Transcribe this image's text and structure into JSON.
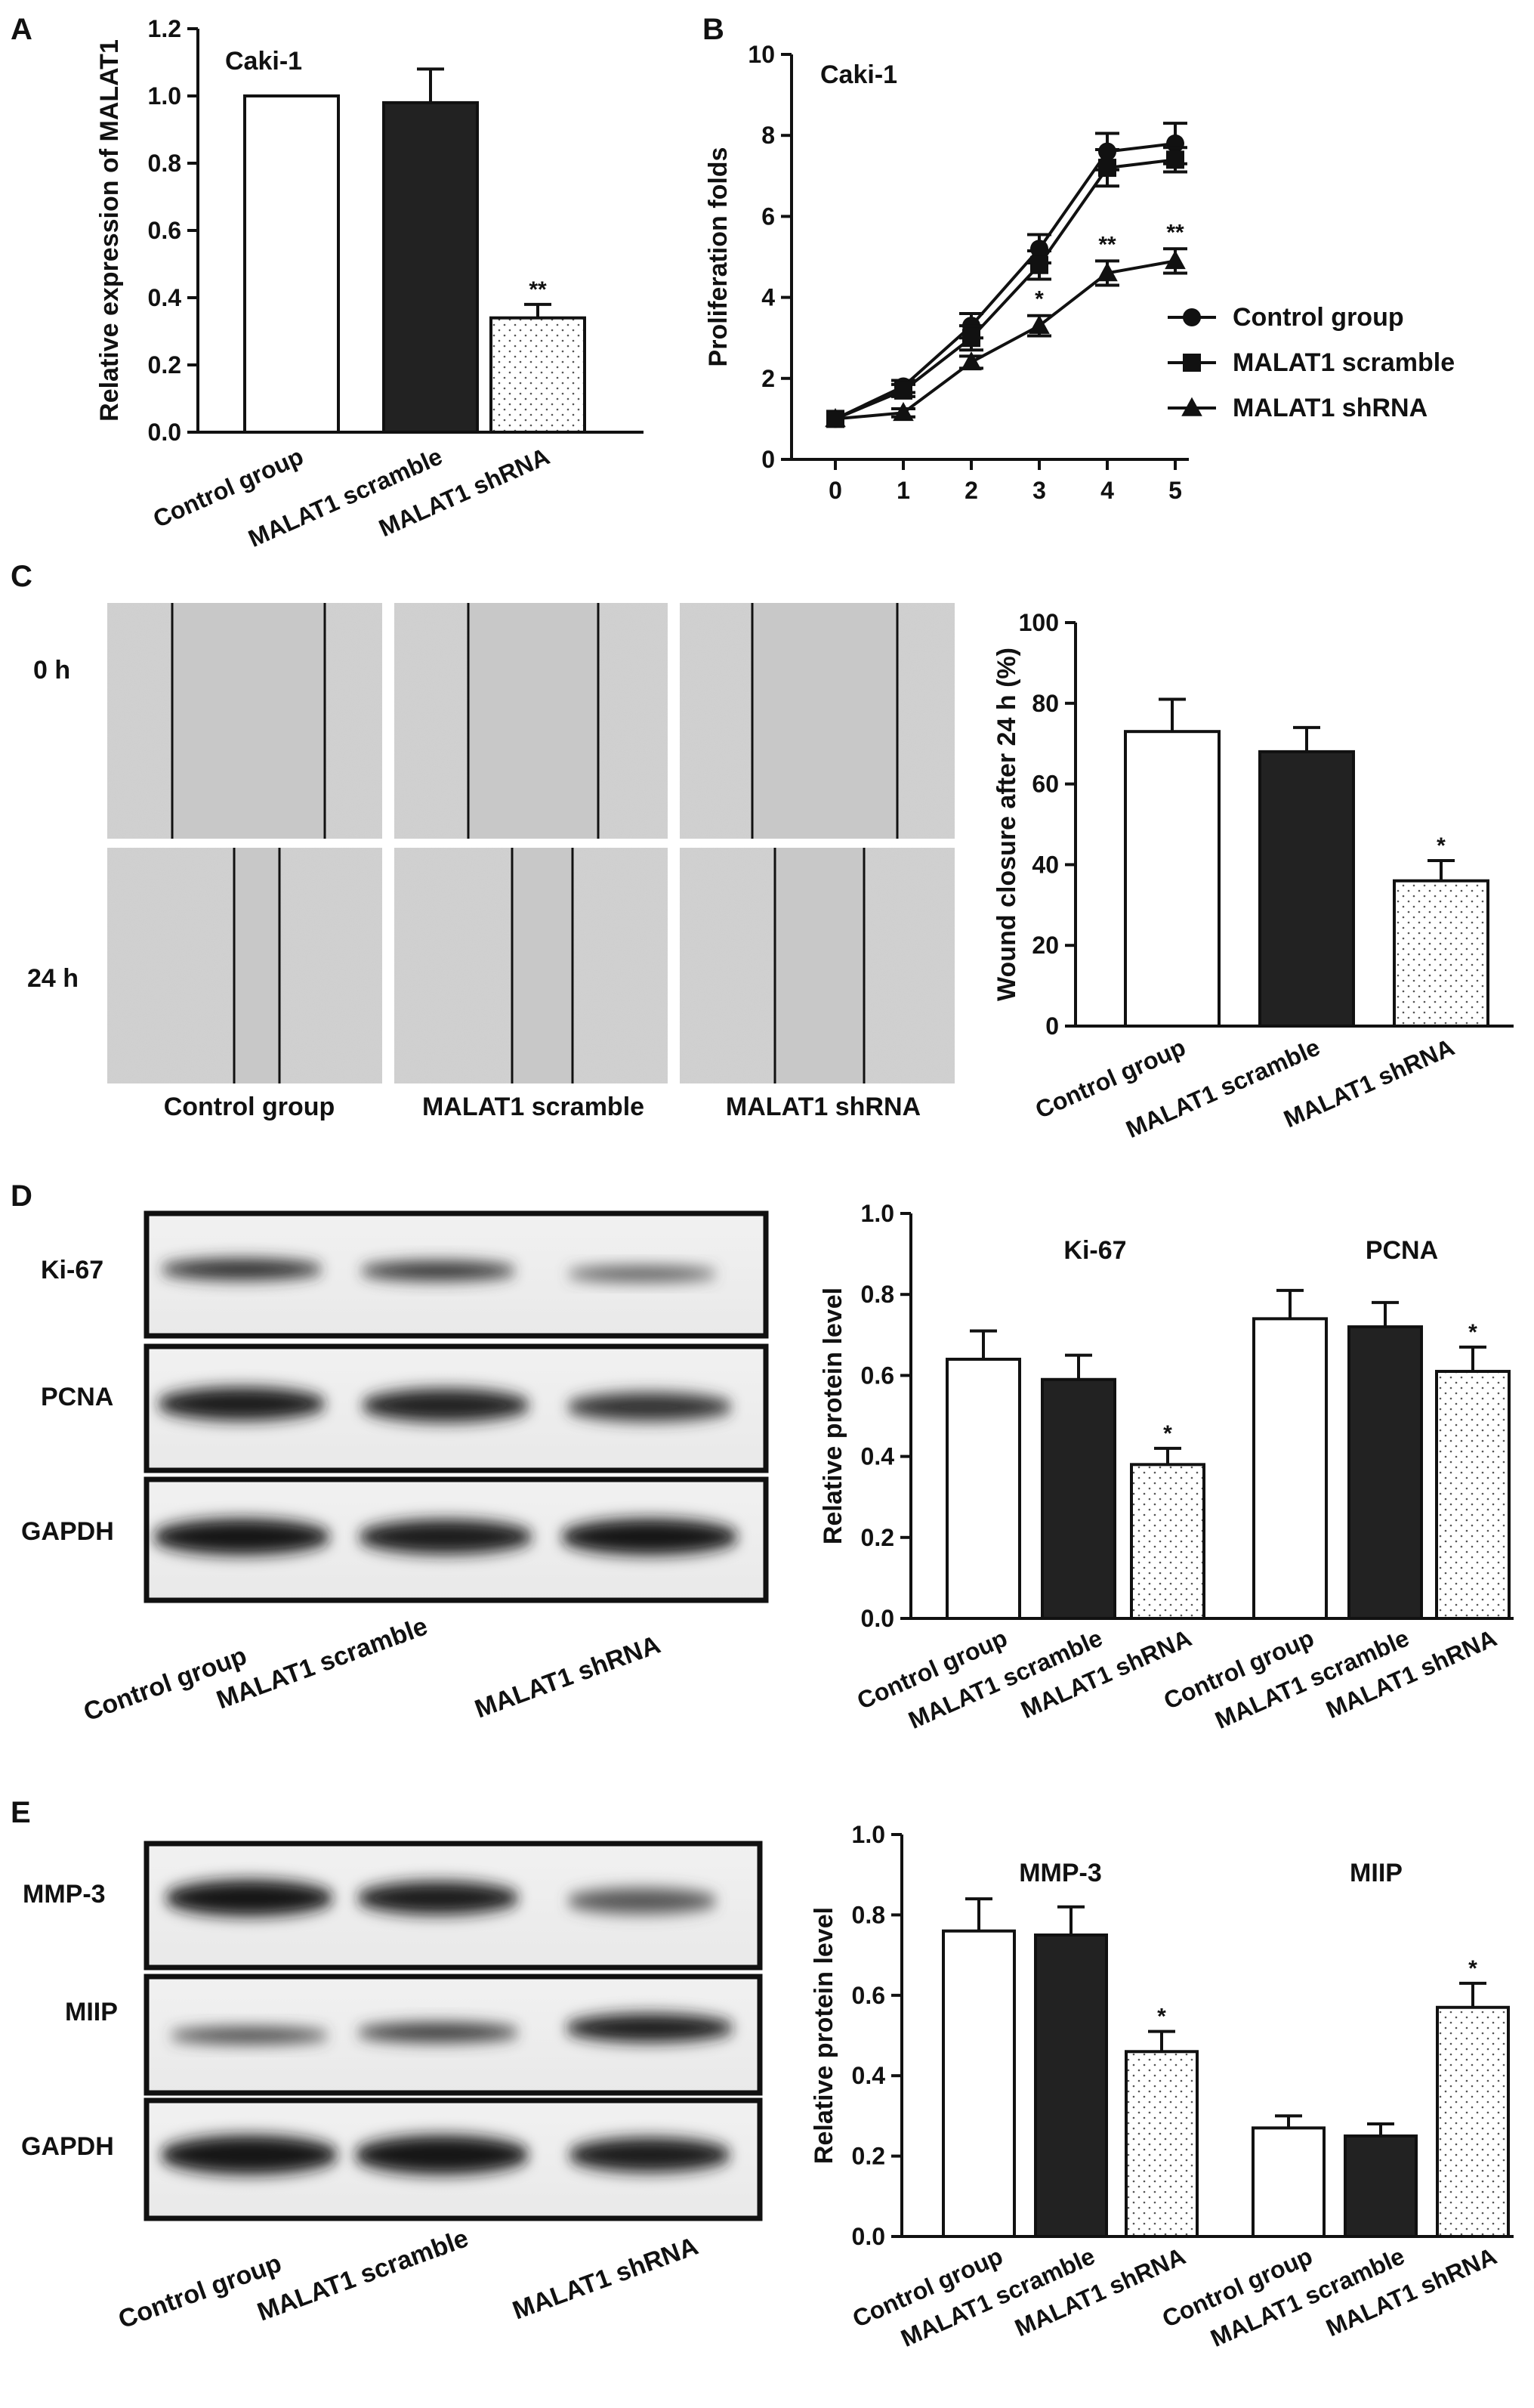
{
  "panels": {
    "A": "A",
    "B": "B",
    "C": "C",
    "D": "D",
    "E": "E"
  },
  "common": {
    "groups": [
      "Control group",
      "MALAT1 scramble",
      "MALAT1 shRNA"
    ],
    "colors": {
      "control": "#ffffff",
      "scramble": "#222222",
      "shrna_fill": "#ffffff",
      "shrna_dots": "#555555"
    }
  },
  "panelA": {
    "annotation": "Caki-1"
  },
  "panelB": {
    "annotation": "Caki-1",
    "legend_position": "middle-right"
  },
  "panelC": {
    "row_labels": [
      "0 h",
      "24 h"
    ],
    "image_labels": [
      "Control group",
      "MALAT1 scramble",
      "MALAT1 shRNA"
    ]
  },
  "panelD": {
    "blot_labels": [
      "Ki-67",
      "PCNA",
      "GAPDH"
    ],
    "lane_labels": [
      "Control group",
      "MALAT1 scramble",
      "MALAT1 shRNA"
    ]
  },
  "panelE": {
    "blot_labels": [
      "MMP-3",
      "MIIP",
      "GAPDH"
    ],
    "lane_labels": [
      "Control group",
      "MALAT1 scramble",
      "MALAT1 shRNA"
    ]
  },
  "chart_data": [
    {
      "id": "A",
      "type": "bar",
      "categories": [
        "Control group",
        "MALAT1 scramble",
        "MALAT1 shRNA"
      ],
      "values": [
        1.0,
        0.98,
        0.34
      ],
      "errors": [
        0.0,
        0.1,
        0.04
      ],
      "significance": [
        "",
        "",
        "**"
      ],
      "ylabel": "Relative expression of MALAT1",
      "ylim": [
        0,
        1.2
      ],
      "yticks": [
        "0.0",
        "0.2",
        "0.4",
        "0.6",
        "0.8",
        "1.0",
        "1.2"
      ]
    },
    {
      "id": "B",
      "type": "line",
      "x": [
        0,
        1,
        2,
        3,
        4,
        5
      ],
      "xticks": [
        "0",
        "1",
        "2",
        "3",
        "4",
        "5"
      ],
      "ylabel": "Proliferation folds",
      "ylim": [
        0,
        10
      ],
      "yticks": [
        "0",
        "2",
        "4",
        "6",
        "8",
        "10"
      ],
      "series": [
        {
          "name": "Control group",
          "marker": "circle",
          "values": [
            1.0,
            1.8,
            3.3,
            5.2,
            7.6,
            7.8
          ],
          "errors": [
            0.05,
            0.15,
            0.3,
            0.35,
            0.45,
            0.5
          ]
        },
        {
          "name": "MALAT1 scramble",
          "marker": "square",
          "values": [
            1.0,
            1.7,
            3.0,
            4.8,
            7.2,
            7.4
          ],
          "errors": [
            0.05,
            0.15,
            0.3,
            0.35,
            0.45,
            0.3
          ]
        },
        {
          "name": "MALAT1 shRNA",
          "marker": "triangle",
          "values": [
            1.0,
            1.15,
            2.4,
            3.3,
            4.6,
            4.9
          ],
          "errors": [
            0.05,
            0.1,
            0.15,
            0.25,
            0.3,
            0.3
          ]
        }
      ],
      "significance": [
        {
          "x": 3,
          "label": "*"
        },
        {
          "x": 4,
          "label": "**"
        },
        {
          "x": 5,
          "label": "**"
        }
      ]
    },
    {
      "id": "C",
      "type": "bar",
      "categories": [
        "Control group",
        "MALAT1 scramble",
        "MALAT1 shRNA"
      ],
      "values": [
        73,
        68,
        36
      ],
      "errors": [
        8,
        6,
        5
      ],
      "significance": [
        "",
        "",
        "*"
      ],
      "ylabel": "Wound closure after 24 h (%)",
      "ylim": [
        0,
        100
      ],
      "yticks": [
        "0",
        "20",
        "40",
        "60",
        "80",
        "100"
      ]
    },
    {
      "id": "D",
      "type": "bar",
      "groups": [
        "Ki-67",
        "PCNA"
      ],
      "categories": [
        "Control group",
        "MALAT1 scramble",
        "MALAT1 shRNA",
        "Control group",
        "MALAT1 scramble",
        "MALAT1 shRNA"
      ],
      "values": [
        0.64,
        0.59,
        0.38,
        0.74,
        0.72,
        0.61
      ],
      "errors": [
        0.07,
        0.06,
        0.04,
        0.07,
        0.06,
        0.06
      ],
      "significance": [
        "",
        "",
        "*",
        "",
        "",
        "*"
      ],
      "ylabel": "Relative protein level",
      "ylim": [
        0,
        1.0
      ],
      "yticks": [
        "0.0",
        "0.2",
        "0.4",
        "0.6",
        "0.8",
        "1.0"
      ]
    },
    {
      "id": "E",
      "type": "bar",
      "groups": [
        "MMP-3",
        "MIIP"
      ],
      "categories": [
        "Control group",
        "MALAT1 scramble",
        "MALAT1 shRNA",
        "Control group",
        "MALAT1 scramble",
        "MALAT1 shRNA"
      ],
      "values": [
        0.76,
        0.75,
        0.46,
        0.27,
        0.25,
        0.57
      ],
      "errors": [
        0.08,
        0.07,
        0.05,
        0.03,
        0.03,
        0.06
      ],
      "significance": [
        "",
        "",
        "*",
        "",
        "",
        "*"
      ],
      "ylabel": "Relative protein level",
      "ylim": [
        0,
        1.0
      ],
      "yticks": [
        "0.0",
        "0.2",
        "0.4",
        "0.6",
        "0.8",
        "1.0"
      ]
    }
  ]
}
